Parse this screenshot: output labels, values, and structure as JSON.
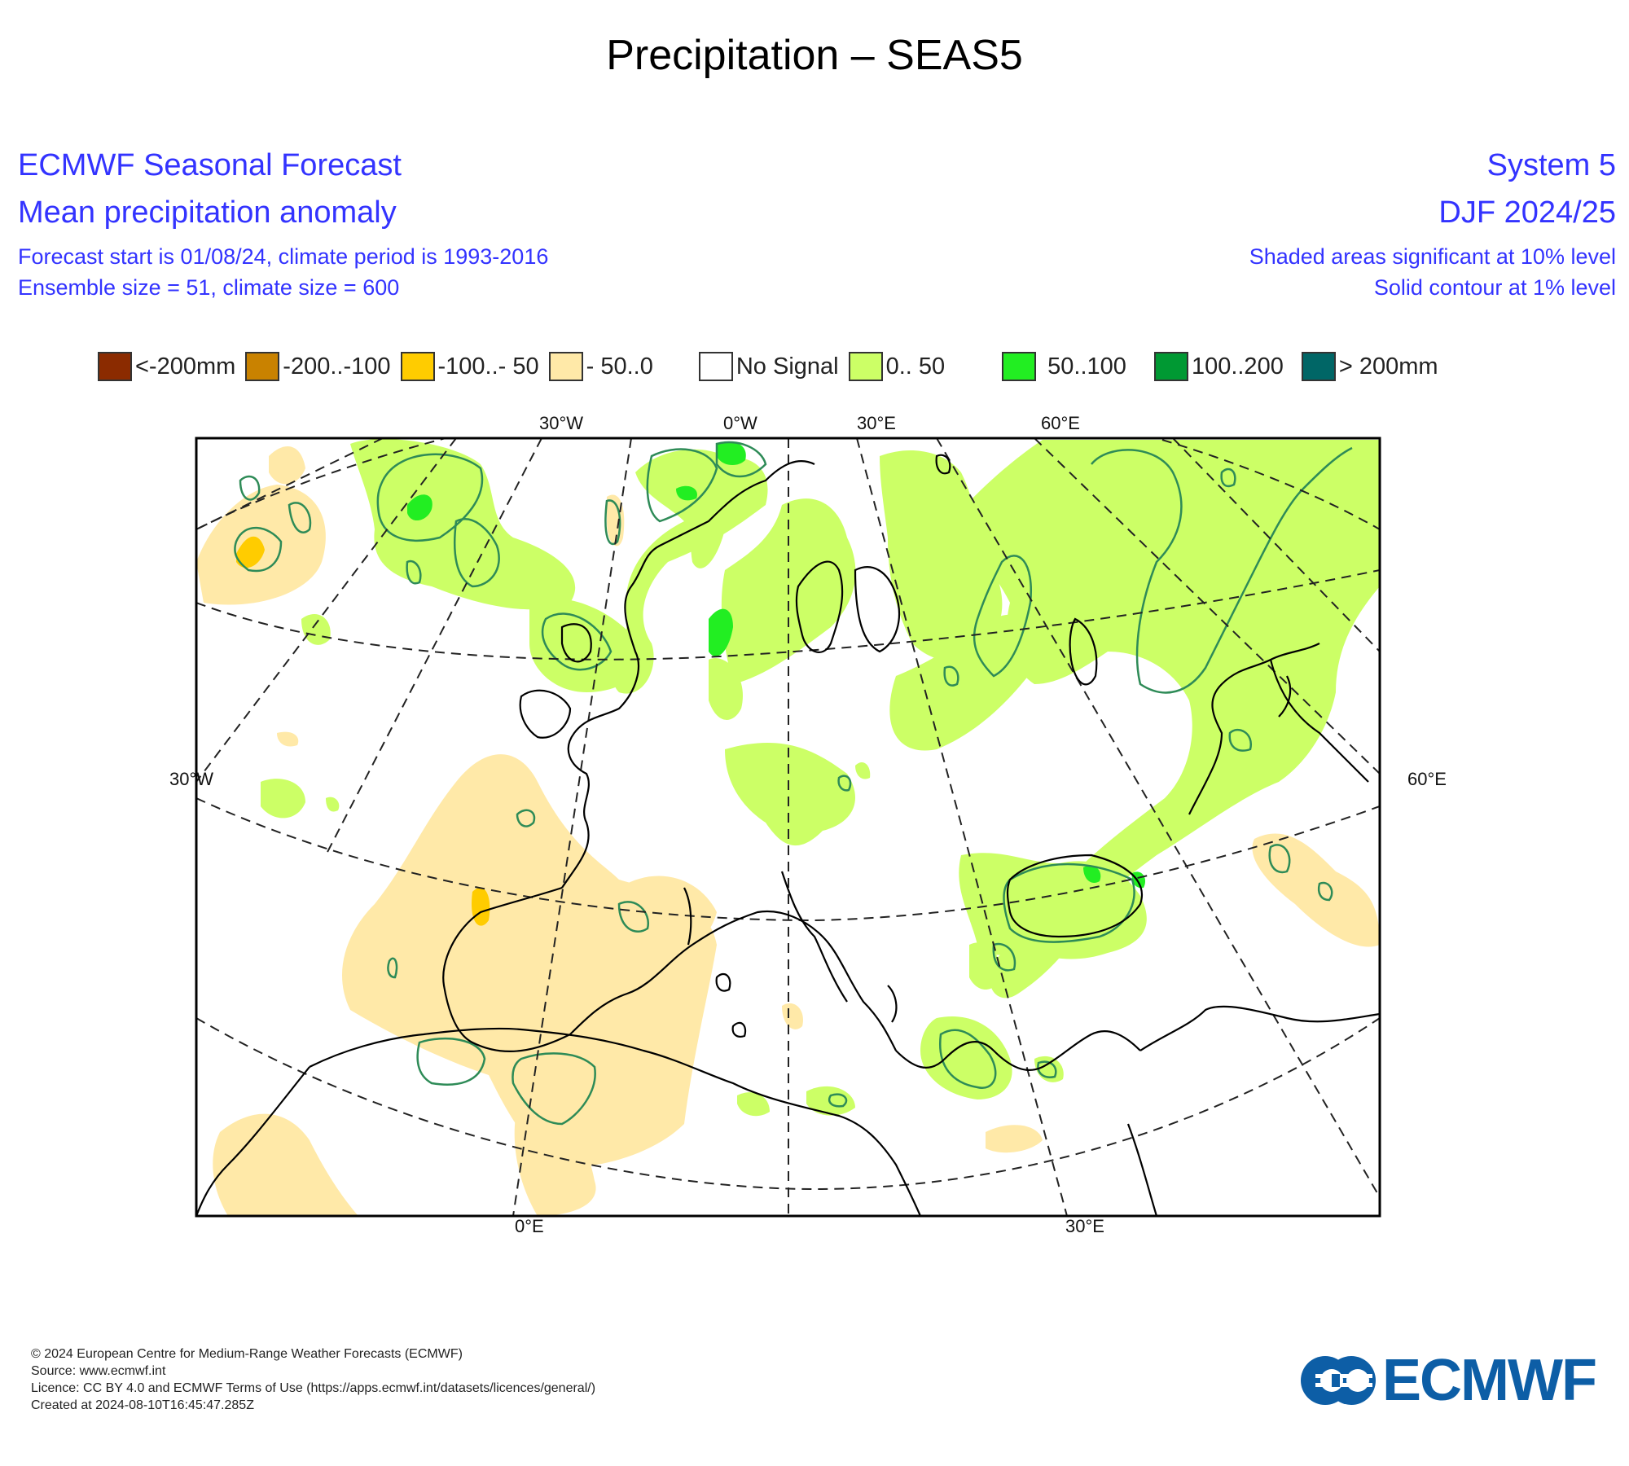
{
  "title": "Precipitation – SEAS5",
  "header": {
    "left_line1": "ECMWF Seasonal Forecast",
    "left_line2": "Mean precipitation anomaly",
    "left_line3": "Forecast start is 01/08/24, climate period is 1993-2016",
    "left_line4": "Ensemble size = 51, climate size = 600",
    "right_line1": "System 5",
    "right_line2": "DJF 2024/25",
    "right_line3": "Shaded areas significant at 10% level",
    "right_line4": "Solid contour at 1% level"
  },
  "legend": [
    {
      "label": "<-200mm",
      "color": "#8b2b00"
    },
    {
      "label": "-200..-100",
      "color": "#c98200"
    },
    {
      "label": "-100..- 50",
      "color": "#ffcc00"
    },
    {
      "label": "- 50..0",
      "color": "#ffe9a8"
    },
    {
      "label": "No Signal",
      "color": "#ffffff"
    },
    {
      "label": "0.. 50",
      "color": "#ccff66"
    },
    {
      "label": "50..100",
      "color": "#22ee22"
    },
    {
      "label": "100..200",
      "color": "#009933"
    },
    {
      "label": "> 200mm",
      "color": "#006666"
    }
  ],
  "map": {
    "top_labels": [
      "30°W",
      "0°W",
      "30°E",
      "60°E"
    ],
    "bottom_labels": [
      "0°E",
      "30°E"
    ],
    "left_label": "30°W",
    "right_label": "60°E",
    "colors": {
      "pos_light": "#ccff66",
      "pos_mid": "#22ee22",
      "neg_light": "#ffe9a8",
      "neg_mid": "#ffcc00",
      "contour": "#2e8b57",
      "coast": "#000000"
    }
  },
  "footer": {
    "line1": "© 2024 European Centre for Medium-Range Weather Forecasts (ECMWF)",
    "line2": "Source: www.ecmwf.int",
    "line3": "Licence: CC BY 4.0 and ECMWF Terms of Use (https://apps.ecmwf.int/datasets/licences/general/)",
    "line4": "Created at 2024-08-10T16:45:47.285Z"
  },
  "logo": {
    "text": "ECMWF",
    "color": "#0d5ea6",
    "icon": "ecmwf-logo-icon"
  }
}
